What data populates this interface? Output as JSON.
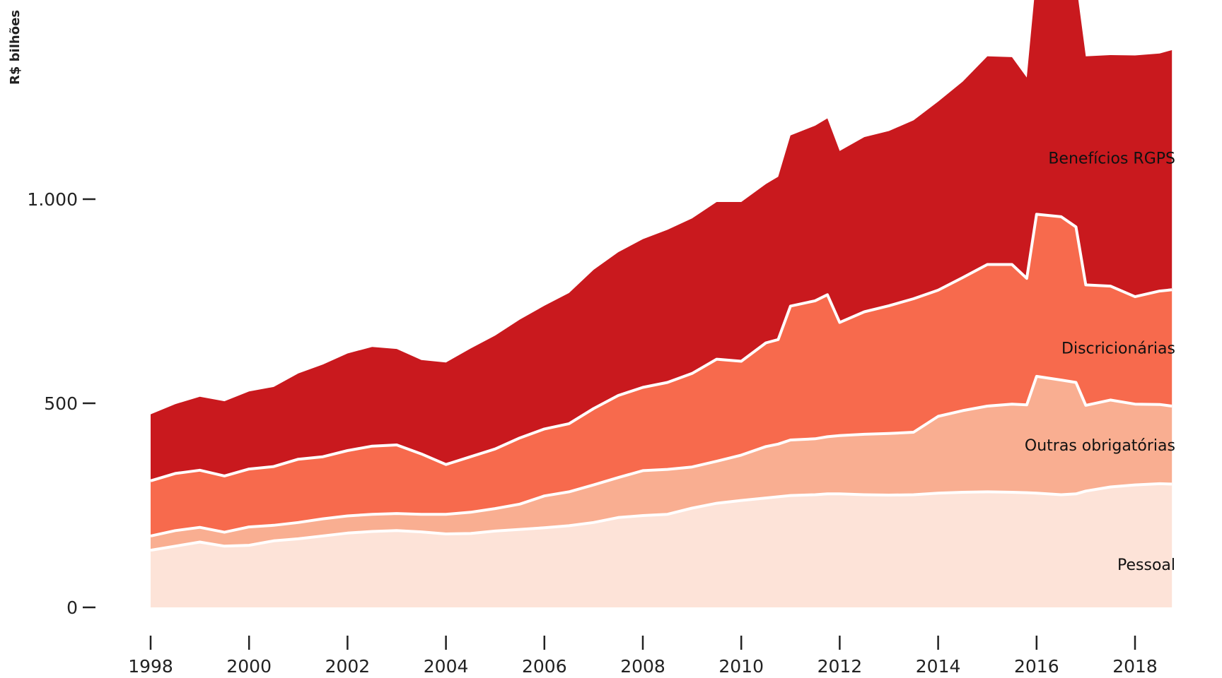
{
  "chart_data": {
    "type": "area",
    "stacked": true,
    "ylabel": "R$ bilhões",
    "xlabel": "",
    "xlim": [
      1998,
      2018.75
    ],
    "ylim": [
      0,
      1450
    ],
    "x_ticks": [
      1998,
      2000,
      2002,
      2004,
      2006,
      2008,
      2010,
      2012,
      2014,
      2016,
      2018
    ],
    "x_tick_labels": [
      "1998",
      "2000",
      "2002",
      "2004",
      "2006",
      "2008",
      "2010",
      "2012",
      "2014",
      "2016",
      "2018"
    ],
    "y_ticks": [
      0,
      500,
      1000
    ],
    "y_tick_labels": [
      "0",
      "500",
      "1.000"
    ],
    "grid": false,
    "legend": "direct labels at right end of each band",
    "x": [
      1998.0,
      1998.5,
      1999.0,
      1999.5,
      2000.0,
      2000.5,
      2001.0,
      2001.5,
      2002.0,
      2002.5,
      2003.0,
      2003.5,
      2004.0,
      2004.5,
      2005.0,
      2005.5,
      2006.0,
      2006.5,
      2007.0,
      2007.5,
      2008.0,
      2008.5,
      2009.0,
      2009.5,
      2010.0,
      2010.5,
      2010.75,
      2011.0,
      2011.5,
      2011.75,
      2012.0,
      2012.5,
      2013.0,
      2013.5,
      2014.0,
      2014.5,
      2015.0,
      2015.5,
      2015.8,
      2016.0,
      2016.5,
      2016.8,
      2017.0,
      2017.5,
      2018.0,
      2018.5,
      2018.75
    ],
    "series": [
      {
        "name": "Pessoal",
        "color": "#fde3d8",
        "values": [
          140,
          150,
          160,
          150,
          152,
          163,
          168,
          175,
          182,
          186,
          188,
          185,
          180,
          181,
          187,
          191,
          195,
          200,
          208,
          220,
          225,
          228,
          243,
          255,
          262,
          268,
          271,
          274,
          276,
          278,
          278,
          276,
          275,
          276,
          280,
          282,
          283,
          282,
          281,
          280,
          276,
          278,
          285,
          295,
          300,
          303,
          302
        ]
      },
      {
        "name": "Outras obrigatórias",
        "color": "#f9ae91",
        "values": [
          35,
          38,
          36,
          34,
          45,
          38,
          40,
          42,
          42,
          42,
          42,
          43,
          48,
          52,
          55,
          62,
          78,
          83,
          92,
          98,
          110,
          110,
          101,
          103,
          111,
          126,
          129,
          136,
          137,
          140,
          143,
          148,
          151,
          153,
          188,
          200,
          210,
          216,
          215,
          286,
          281,
          273,
          210,
          213,
          198,
          194,
          191
        ]
      },
      {
        "name": "Discricionárias",
        "color": "#f76a4d",
        "values": [
          135,
          140,
          140,
          138,
          142,
          144,
          155,
          152,
          160,
          167,
          168,
          148,
          122,
          136,
          146,
          162,
          164,
          167,
          187,
          201,
          204,
          213,
          229,
          250,
          230,
          254,
          256,
          328,
          338,
          348,
          277,
          300,
          313,
          327,
          309,
          326,
          347,
          342,
          310,
          397,
          400,
          381,
          295,
          279,
          263,
          278,
          285
        ]
      },
      {
        "name": "Benefícios RGPS",
        "color": "#c9191e",
        "values": [
          163,
          170,
          180,
          183,
          190,
          195,
          210,
          226,
          238,
          243,
          235,
          230,
          250,
          265,
          278,
          290,
          302,
          320,
          340,
          351,
          363,
          374,
          380,
          385,
          390,
          389,
          399,
          418,
          429,
          432,
          420,
          428,
          428,
          437,
          462,
          480,
          510,
          508,
          492,
          590,
          610,
          600,
          560,
          566,
          591,
          582,
          587
        ]
      }
    ]
  }
}
